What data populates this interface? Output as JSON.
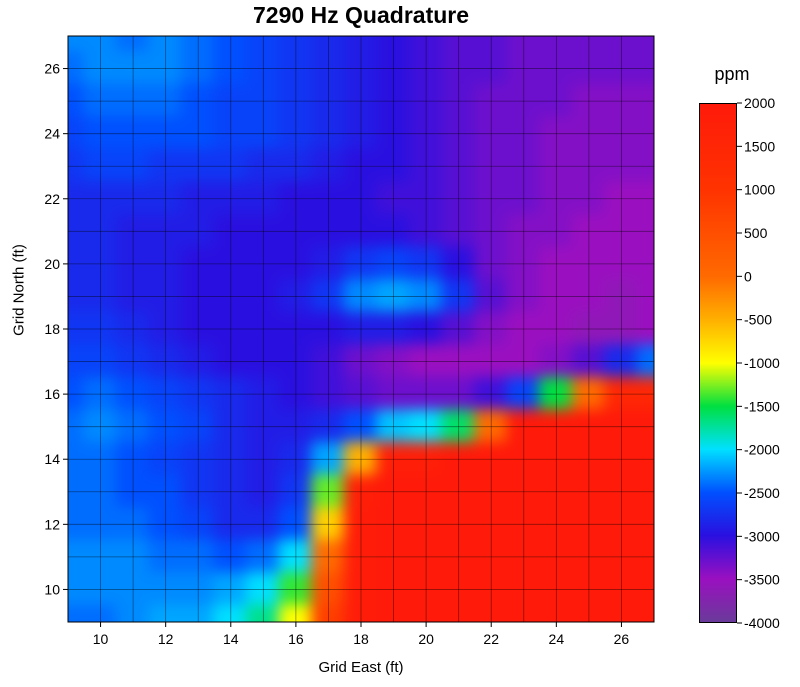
{
  "chart_data": {
    "type": "heatmap",
    "title": "7290 Hz Quadrature",
    "xlabel": "Grid East (ft)",
    "ylabel": "Grid North (ft)",
    "colorbar_label": "ppm",
    "xlim": [
      9,
      27
    ],
    "ylim": [
      9,
      27
    ],
    "x_ticks": [
      10,
      12,
      14,
      16,
      18,
      20,
      22,
      24,
      26
    ],
    "y_ticks": [
      10,
      12,
      14,
      16,
      18,
      20,
      22,
      24,
      26
    ],
    "colorbar_range": [
      -4000,
      2000
    ],
    "colorbar_ticks": [
      2000,
      1500,
      1000,
      500,
      0,
      -500,
      -1000,
      -1500,
      -2000,
      -2500,
      -3000,
      -3500,
      -4000
    ],
    "colormap": [
      {
        "value": 2000,
        "color": "#ff1a0a"
      },
      {
        "value": 1000,
        "color": "#ff3300"
      },
      {
        "value": 0,
        "color": "#ff6a00"
      },
      {
        "value": -500,
        "color": "#ffb000"
      },
      {
        "value": -1000,
        "color": "#ffff00"
      },
      {
        "value": -1500,
        "color": "#00e040"
      },
      {
        "value": -2000,
        "color": "#00e0ff"
      },
      {
        "value": -2500,
        "color": "#0050ff"
      },
      {
        "value": -3000,
        "color": "#2a10e0"
      },
      {
        "value": -3500,
        "color": "#9a10c0"
      },
      {
        "value": -4000,
        "color": "#6a3a9a"
      }
    ],
    "grid": true,
    "x": [
      9,
      10,
      11,
      12,
      13,
      14,
      15,
      16,
      17,
      18,
      19,
      20,
      21,
      22,
      23,
      24,
      25,
      26,
      27
    ],
    "y": [
      27,
      26,
      25,
      24,
      23,
      22,
      21,
      20,
      19,
      18,
      17,
      16,
      15,
      14,
      13,
      12,
      11,
      10,
      9
    ],
    "z": [
      [
        -2300,
        -2300,
        -2400,
        -2300,
        -2400,
        -2500,
        -2600,
        -2700,
        -2800,
        -2900,
        -3000,
        -3100,
        -3200,
        -3200,
        -3300,
        -3300,
        -3300,
        -3300,
        -3300
      ],
      [
        -2400,
        -2300,
        -2300,
        -2300,
        -2400,
        -2500,
        -2600,
        -2700,
        -2800,
        -2900,
        -3000,
        -3100,
        -3200,
        -3200,
        -3300,
        -3300,
        -3300,
        -3300,
        -3300
      ],
      [
        -2500,
        -2400,
        -2400,
        -2400,
        -2500,
        -2600,
        -2600,
        -2700,
        -2800,
        -2900,
        -3000,
        -3100,
        -3200,
        -3300,
        -3300,
        -3300,
        -3400,
        -3400,
        -3400
      ],
      [
        -2600,
        -2500,
        -2500,
        -2500,
        -2500,
        -2600,
        -2600,
        -2700,
        -2800,
        -2900,
        -3000,
        -3100,
        -3200,
        -3300,
        -3300,
        -3400,
        -3400,
        -3400,
        -3400
      ],
      [
        -2700,
        -2600,
        -2600,
        -2700,
        -2700,
        -2700,
        -2800,
        -2800,
        -2900,
        -3000,
        -3000,
        -3100,
        -3200,
        -3300,
        -3300,
        -3400,
        -3400,
        -3400,
        -3400
      ],
      [
        -2800,
        -2800,
        -2800,
        -2800,
        -2900,
        -2900,
        -2900,
        -3000,
        -3000,
        -3000,
        -3100,
        -3100,
        -3200,
        -3300,
        -3300,
        -3400,
        -3400,
        -3500,
        -3500
      ],
      [
        -2800,
        -2800,
        -2900,
        -2900,
        -2900,
        -3000,
        -3000,
        -3000,
        -3000,
        -3000,
        -3000,
        -3100,
        -3200,
        -3300,
        -3400,
        -3400,
        -3500,
        -3500,
        -3500
      ],
      [
        -2800,
        -2800,
        -2900,
        -2900,
        -3000,
        -3000,
        -3000,
        -3000,
        -2900,
        -2700,
        -2600,
        -2700,
        -3000,
        -3300,
        -3400,
        -3500,
        -3500,
        -3500,
        -3500
      ],
      [
        -2800,
        -2800,
        -2900,
        -2900,
        -3000,
        -3000,
        -3000,
        -2900,
        -2700,
        -2300,
        -2200,
        -2300,
        -2700,
        -3200,
        -3400,
        -3500,
        -3500,
        -3600,
        -3500
      ],
      [
        -2700,
        -2700,
        -2800,
        -2900,
        -3000,
        -3000,
        -3000,
        -3000,
        -3000,
        -2900,
        -2900,
        -3000,
        -3200,
        -3400,
        -3500,
        -3500,
        -3600,
        -3600,
        -3500
      ],
      [
        -2600,
        -2600,
        -2700,
        -2800,
        -2900,
        -3000,
        -3000,
        -3000,
        -3100,
        -3300,
        -3400,
        -3500,
        -3500,
        -3500,
        -3500,
        -3400,
        -3200,
        -2800,
        -2400
      ],
      [
        -2500,
        -2400,
        -2500,
        -2600,
        -2700,
        -2800,
        -2900,
        -3000,
        -3100,
        -3200,
        -3300,
        -3300,
        -3300,
        -3100,
        -2600,
        -1500,
        0,
        1500,
        1500
      ],
      [
        -2400,
        -2300,
        -2400,
        -2500,
        -2600,
        -2800,
        -2900,
        -2900,
        -2800,
        -2500,
        -2100,
        -2000,
        -1600,
        0,
        2000,
        2000,
        2000,
        2000,
        2000
      ],
      [
        -2400,
        -2400,
        -2500,
        -2600,
        -2700,
        -2800,
        -2900,
        -2800,
        -2200,
        -500,
        1800,
        1800,
        2000,
        2000,
        2000,
        2000,
        2000,
        2000,
        2000
      ],
      [
        -2400,
        -2400,
        -2500,
        -2500,
        -2700,
        -2800,
        -2900,
        -2700,
        -1300,
        1800,
        2000,
        2000,
        2000,
        2000,
        2000,
        2000,
        2000,
        2000,
        2000
      ],
      [
        -2400,
        -2400,
        -2400,
        -2500,
        -2600,
        -2800,
        -2800,
        -2500,
        -700,
        1900,
        2000,
        2000,
        2000,
        2000,
        2000,
        2000,
        2000,
        2000,
        2000
      ],
      [
        -2300,
        -2300,
        -2300,
        -2400,
        -2400,
        -2500,
        -2400,
        -2000,
        0,
        1900,
        2000,
        2000,
        2000,
        2000,
        2000,
        2000,
        2000,
        2000,
        2000
      ],
      [
        -2300,
        -2300,
        -2300,
        -2300,
        -2300,
        -2200,
        -2000,
        -1400,
        500,
        1900,
        2000,
        2000,
        2000,
        2000,
        2000,
        2000,
        2000,
        2000,
        2000
      ],
      [
        -2400,
        -2400,
        -2300,
        -2200,
        -2200,
        -2000,
        -1700,
        -1000,
        800,
        1900,
        2000,
        2000,
        2000,
        2000,
        2000,
        2000,
        2000,
        2000,
        2000
      ]
    ]
  }
}
